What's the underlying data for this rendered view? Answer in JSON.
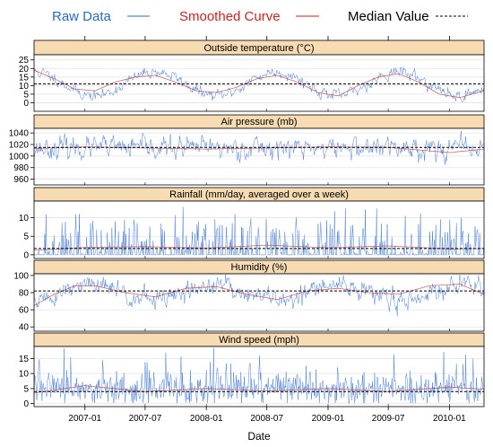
{
  "chart_data": {
    "type": "line",
    "xlabel": "Date",
    "xlim": [
      "2006-08-01",
      "2010-04-15"
    ],
    "x_ticks": [
      "2007-01",
      "2007-07",
      "2008-01",
      "2008-07",
      "2009-01",
      "2009-07",
      "2010-01"
    ],
    "legend": {
      "placement": "top",
      "entries": [
        {
          "label": "Raw Data",
          "color": "#2a68c8",
          "style": "solid"
        },
        {
          "label": "Smoothed Curve",
          "color": "#cc2222",
          "style": "solid"
        },
        {
          "label": "Median Value",
          "color": "#000000",
          "style": "dashed"
        }
      ]
    },
    "panels": [
      {
        "title": "Outside temperature (°C)",
        "ylim": [
          -5,
          28
        ],
        "yticks": [
          0,
          5,
          10,
          15,
          20,
          25
        ],
        "median": 11,
        "raw": {
          "base": 11,
          "amp": 7,
          "phase_month": 7,
          "noise": 4,
          "seed": 11
        },
        "smoothed": [
          [
            "2006-08-01",
            19
          ],
          [
            "2006-10-01",
            14
          ],
          [
            "2006-12-01",
            8
          ],
          [
            "2007-02-01",
            7
          ],
          [
            "2007-04-01",
            12
          ],
          [
            "2007-06-01",
            15
          ],
          [
            "2007-08-01",
            16
          ],
          [
            "2007-10-01",
            12
          ],
          [
            "2007-12-01",
            7
          ],
          [
            "2008-02-01",
            6
          ],
          [
            "2008-04-01",
            9
          ],
          [
            "2008-06-01",
            14
          ],
          [
            "2008-08-01",
            16
          ],
          [
            "2008-10-01",
            12
          ],
          [
            "2008-12-01",
            6
          ],
          [
            "2009-02-01",
            4
          ],
          [
            "2009-04-01",
            10
          ],
          [
            "2009-06-01",
            15
          ],
          [
            "2009-08-01",
            17
          ],
          [
            "2009-10-01",
            12
          ],
          [
            "2009-12-01",
            5
          ],
          [
            "2010-02-01",
            3
          ],
          [
            "2010-04-15",
            7
          ]
        ]
      },
      {
        "title": "Air pressure (mb)",
        "ylim": [
          950,
          1048
        ],
        "yticks": [
          960,
          980,
          1000,
          1020,
          1040
        ],
        "median": 1015,
        "raw": {
          "base": 1014,
          "amp": 0,
          "phase_month": 1,
          "noise": 22,
          "seed": 23
        },
        "smoothed": [
          [
            "2006-08-01",
            1013
          ],
          [
            "2007-01-01",
            1016
          ],
          [
            "2007-07-01",
            1014
          ],
          [
            "2008-01-01",
            1012
          ],
          [
            "2008-07-01",
            1014
          ],
          [
            "2009-01-01",
            1016
          ],
          [
            "2009-07-01",
            1015
          ],
          [
            "2010-01-01",
            1006
          ],
          [
            "2010-04-15",
            1012
          ]
        ]
      },
      {
        "title": "Rainfall (mm/day, averaged over a week)",
        "ylim": [
          -1,
          14.5
        ],
        "yticks": [
          0,
          5,
          10
        ],
        "median": 1.7,
        "raw": {
          "base": 0,
          "amp": 0,
          "phase_month": 1,
          "noise": 0,
          "seed": 37,
          "kind": "rain"
        },
        "smoothed": [
          [
            "2006-08-01",
            1.2
          ],
          [
            "2007-01-01",
            2.0
          ],
          [
            "2007-07-01",
            2.2
          ],
          [
            "2008-01-01",
            1.8
          ],
          [
            "2008-07-01",
            2.6
          ],
          [
            "2009-01-01",
            1.9
          ],
          [
            "2009-07-01",
            2.4
          ],
          [
            "2010-01-01",
            1.6
          ],
          [
            "2010-04-15",
            1.7
          ]
        ]
      },
      {
        "title": "Humidity (%)",
        "ylim": [
          35,
          102
        ],
        "yticks": [
          40,
          60,
          80,
          100
        ],
        "median": 82,
        "raw": {
          "base": 80,
          "amp": -8,
          "phase_month": 7,
          "noise": 14,
          "seed": 51
        },
        "smoothed": [
          [
            "2006-08-01",
            65
          ],
          [
            "2006-10-01",
            78
          ],
          [
            "2006-12-01",
            88
          ],
          [
            "2007-02-01",
            88
          ],
          [
            "2007-05-01",
            80
          ],
          [
            "2007-08-01",
            75
          ],
          [
            "2007-11-01",
            85
          ],
          [
            "2008-02-01",
            87
          ],
          [
            "2008-05-01",
            78
          ],
          [
            "2008-08-01",
            72
          ],
          [
            "2008-11-01",
            82
          ],
          [
            "2009-02-01",
            85
          ],
          [
            "2009-05-01",
            80
          ],
          [
            "2009-08-01",
            78
          ],
          [
            "2009-11-01",
            88
          ],
          [
            "2010-02-01",
            90
          ],
          [
            "2010-04-15",
            78
          ]
        ]
      },
      {
        "title": "Wind speed (mph)",
        "ylim": [
          -1,
          19
        ],
        "yticks": [
          0,
          5,
          10,
          15
        ],
        "median": 4,
        "raw": {
          "base": 4.5,
          "amp": 0,
          "phase_month": 1,
          "noise": 0,
          "seed": 67,
          "kind": "wind"
        },
        "smoothed": [
          [
            "2006-08-01",
            3.5
          ],
          [
            "2007-01-01",
            6.0
          ],
          [
            "2007-07-01",
            4.0
          ],
          [
            "2008-01-01",
            5.0
          ],
          [
            "2008-07-01",
            4.2
          ],
          [
            "2009-01-01",
            5.0
          ],
          [
            "2009-07-01",
            4.0
          ],
          [
            "2010-01-01",
            5.5
          ],
          [
            "2010-04-15",
            4.8
          ]
        ]
      }
    ]
  }
}
